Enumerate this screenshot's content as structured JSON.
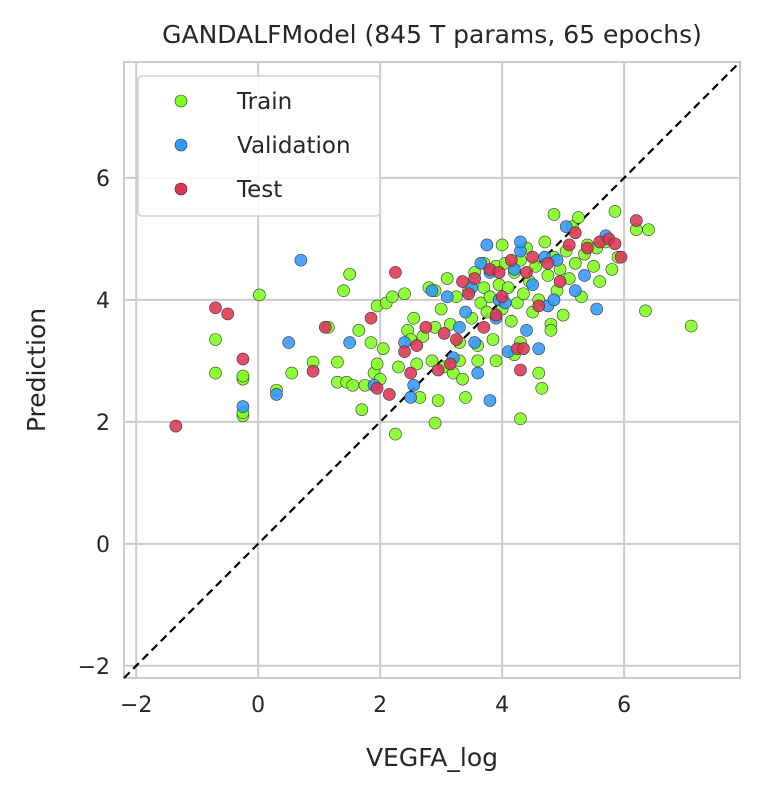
{
  "chart_data": {
    "type": "scatter",
    "title": "GANDALFModel (845 T params, 65 epochs)",
    "xlabel": "VEGFA_log",
    "ylabel": "Prediction",
    "xlim": [
      -2.2,
      7.9
    ],
    "ylim": [
      -2.2,
      7.9
    ],
    "xticks": [
      -2,
      0,
      2,
      4,
      6
    ],
    "yticks": [
      -2,
      0,
      2,
      4,
      6
    ],
    "tick_labels": [
      "−2",
      "0",
      "2",
      "4",
      "6"
    ],
    "grid": true,
    "legend_position": "top-left",
    "reference_line": {
      "style": "dashed",
      "color": "#000000",
      "slope": 1,
      "intercept": 0
    },
    "series": [
      {
        "name": "Train",
        "color": "#7fff1f",
        "points": [
          [
            -0.7,
            3.35
          ],
          [
            -0.7,
            2.8
          ],
          [
            -0.25,
            2.7
          ],
          [
            -0.25,
            2.75
          ],
          [
            -0.25,
            2.1
          ],
          [
            -0.25,
            2.15
          ],
          [
            0.02,
            4.08
          ],
          [
            0.3,
            2.52
          ],
          [
            0.55,
            2.8
          ],
          [
            0.9,
            2.98
          ],
          [
            1.15,
            3.55
          ],
          [
            1.3,
            2.98
          ],
          [
            1.3,
            2.65
          ],
          [
            1.4,
            4.15
          ],
          [
            1.5,
            4.42
          ],
          [
            1.45,
            2.65
          ],
          [
            1.55,
            2.6
          ],
          [
            1.65,
            3.5
          ],
          [
            1.7,
            2.2
          ],
          [
            1.75,
            2.6
          ],
          [
            1.85,
            3.3
          ],
          [
            1.9,
            2.8
          ],
          [
            1.95,
            3.9
          ],
          [
            1.95,
            2.95
          ],
          [
            2.0,
            2.7
          ],
          [
            2.05,
            3.2
          ],
          [
            2.1,
            3.95
          ],
          [
            2.2,
            4.05
          ],
          [
            2.25,
            1.8
          ],
          [
            2.3,
            2.9
          ],
          [
            2.4,
            4.1
          ],
          [
            2.45,
            3.5
          ],
          [
            2.5,
            3.35
          ],
          [
            2.55,
            3.7
          ],
          [
            2.6,
            2.95
          ],
          [
            2.65,
            2.4
          ],
          [
            2.7,
            3.4
          ],
          [
            2.8,
            4.2
          ],
          [
            2.85,
            3.0
          ],
          [
            2.9,
            3.55
          ],
          [
            2.95,
            2.35
          ],
          [
            2.9,
            1.98
          ],
          [
            3.0,
            3.85
          ],
          [
            3.05,
            2.9
          ],
          [
            3.1,
            4.35
          ],
          [
            3.15,
            3.6
          ],
          [
            3.2,
            2.8
          ],
          [
            3.25,
            4.05
          ],
          [
            3.3,
            3.3
          ],
          [
            3.35,
            2.7
          ],
          [
            3.4,
            2.4
          ],
          [
            3.45,
            4.15
          ],
          [
            3.5,
            3.7
          ],
          [
            3.55,
            4.45
          ],
          [
            3.6,
            3.0
          ],
          [
            3.65,
            3.95
          ],
          [
            3.7,
            4.2
          ],
          [
            3.75,
            3.8
          ],
          [
            3.8,
            4.05
          ],
          [
            3.85,
            3.35
          ],
          [
            3.9,
            4.55
          ],
          [
            3.95,
            4.25
          ],
          [
            4.0,
            3.85
          ],
          [
            4.05,
            4.6
          ],
          [
            4.1,
            4.2
          ],
          [
            4.15,
            3.65
          ],
          [
            4.2,
            4.45
          ],
          [
            4.25,
            3.95
          ],
          [
            4.3,
            2.05
          ],
          [
            4.3,
            4.65
          ],
          [
            4.35,
            4.1
          ],
          [
            4.4,
            4.85
          ],
          [
            4.45,
            4.3
          ],
          [
            4.5,
            3.8
          ],
          [
            4.55,
            4.55
          ],
          [
            4.6,
            4.0
          ],
          [
            4.65,
            2.55
          ],
          [
            4.7,
            4.95
          ],
          [
            4.75,
            4.4
          ],
          [
            4.8,
            3.6
          ],
          [
            4.85,
            4.7
          ],
          [
            4.85,
            5.4
          ],
          [
            4.9,
            4.15
          ],
          [
            4.95,
            4.5
          ],
          [
            5.0,
            3.75
          ],
          [
            5.05,
            4.8
          ],
          [
            5.1,
            4.35
          ],
          [
            5.15,
            5.2
          ],
          [
            5.2,
            4.6
          ],
          [
            5.25,
            5.35
          ],
          [
            5.3,
            4.05
          ],
          [
            5.35,
            4.75
          ],
          [
            5.4,
            4.9
          ],
          [
            5.5,
            4.55
          ],
          [
            5.55,
            4.85
          ],
          [
            5.6,
            4.3
          ],
          [
            5.7,
            4.95
          ],
          [
            5.8,
            4.5
          ],
          [
            5.85,
            5.45
          ],
          [
            5.9,
            4.7
          ],
          [
            6.2,
            5.15
          ],
          [
            6.4,
            5.15
          ],
          [
            6.35,
            3.82
          ],
          [
            7.1,
            3.57
          ],
          [
            4.0,
            4.9
          ],
          [
            3.7,
            4.6
          ],
          [
            4.2,
            3.1
          ],
          [
            3.6,
            3.25
          ],
          [
            4.8,
            3.5
          ],
          [
            4.6,
            2.8
          ],
          [
            3.9,
            3.0
          ],
          [
            4.3,
            3.3
          ],
          [
            3.3,
            3.0
          ],
          [
            2.9,
            4.15
          ]
        ]
      },
      {
        "name": "Validation",
        "color": "#3399ff",
        "points": [
          [
            -0.25,
            2.25
          ],
          [
            0.3,
            2.45
          ],
          [
            0.5,
            3.3
          ],
          [
            0.7,
            4.65
          ],
          [
            1.5,
            3.3
          ],
          [
            1.9,
            2.6
          ],
          [
            2.4,
            3.3
          ],
          [
            2.5,
            2.4
          ],
          [
            2.55,
            2.6
          ],
          [
            2.85,
            4.15
          ],
          [
            3.1,
            4.05
          ],
          [
            3.3,
            3.55
          ],
          [
            3.4,
            3.8
          ],
          [
            3.5,
            4.2
          ],
          [
            3.65,
            4.6
          ],
          [
            3.75,
            4.9
          ],
          [
            3.8,
            4.45
          ],
          [
            3.9,
            3.7
          ],
          [
            3.95,
            4.0
          ],
          [
            4.1,
            3.15
          ],
          [
            4.2,
            4.5
          ],
          [
            4.3,
            4.8
          ],
          [
            4.3,
            4.95
          ],
          [
            4.4,
            3.5
          ],
          [
            4.5,
            4.25
          ],
          [
            4.6,
            3.2
          ],
          [
            4.7,
            4.7
          ],
          [
            4.75,
            3.9
          ],
          [
            4.9,
            4.65
          ],
          [
            5.05,
            5.2
          ],
          [
            5.2,
            4.15
          ],
          [
            5.35,
            4.4
          ],
          [
            5.55,
            3.85
          ],
          [
            5.7,
            5.05
          ],
          [
            3.2,
            3.05
          ],
          [
            3.55,
            3.3
          ],
          [
            4.05,
            3.95
          ],
          [
            4.85,
            4.0
          ],
          [
            3.8,
            2.35
          ],
          [
            3.6,
            2.8
          ]
        ]
      },
      {
        "name": "Test",
        "color": "#dc3555",
        "points": [
          [
            -1.35,
            1.93
          ],
          [
            -0.7,
            3.87
          ],
          [
            -0.5,
            3.77
          ],
          [
            -0.25,
            3.03
          ],
          [
            0.9,
            2.83
          ],
          [
            1.1,
            3.55
          ],
          [
            1.85,
            3.7
          ],
          [
            1.95,
            2.55
          ],
          [
            2.15,
            2.45
          ],
          [
            2.25,
            4.45
          ],
          [
            2.4,
            3.15
          ],
          [
            2.5,
            2.8
          ],
          [
            2.6,
            3.25
          ],
          [
            2.75,
            3.55
          ],
          [
            2.95,
            2.85
          ],
          [
            3.05,
            3.45
          ],
          [
            3.15,
            2.95
          ],
          [
            3.25,
            3.35
          ],
          [
            3.35,
            4.3
          ],
          [
            3.45,
            4.1
          ],
          [
            3.55,
            4.35
          ],
          [
            3.7,
            3.55
          ],
          [
            3.8,
            4.5
          ],
          [
            3.9,
            3.75
          ],
          [
            4.0,
            4.05
          ],
          [
            4.15,
            4.65
          ],
          [
            4.25,
            3.2
          ],
          [
            4.3,
            2.85
          ],
          [
            4.4,
            4.45
          ],
          [
            4.5,
            4.7
          ],
          [
            4.6,
            3.9
          ],
          [
            4.75,
            4.6
          ],
          [
            4.95,
            4.3
          ],
          [
            5.1,
            4.9
          ],
          [
            5.2,
            5.1
          ],
          [
            5.4,
            4.85
          ],
          [
            5.6,
            4.95
          ],
          [
            5.75,
            5.0
          ],
          [
            5.85,
            4.92
          ],
          [
            5.95,
            4.7
          ],
          [
            6.2,
            5.3
          ],
          [
            4.35,
            3.2
          ],
          [
            3.95,
            4.45
          ]
        ]
      }
    ]
  }
}
